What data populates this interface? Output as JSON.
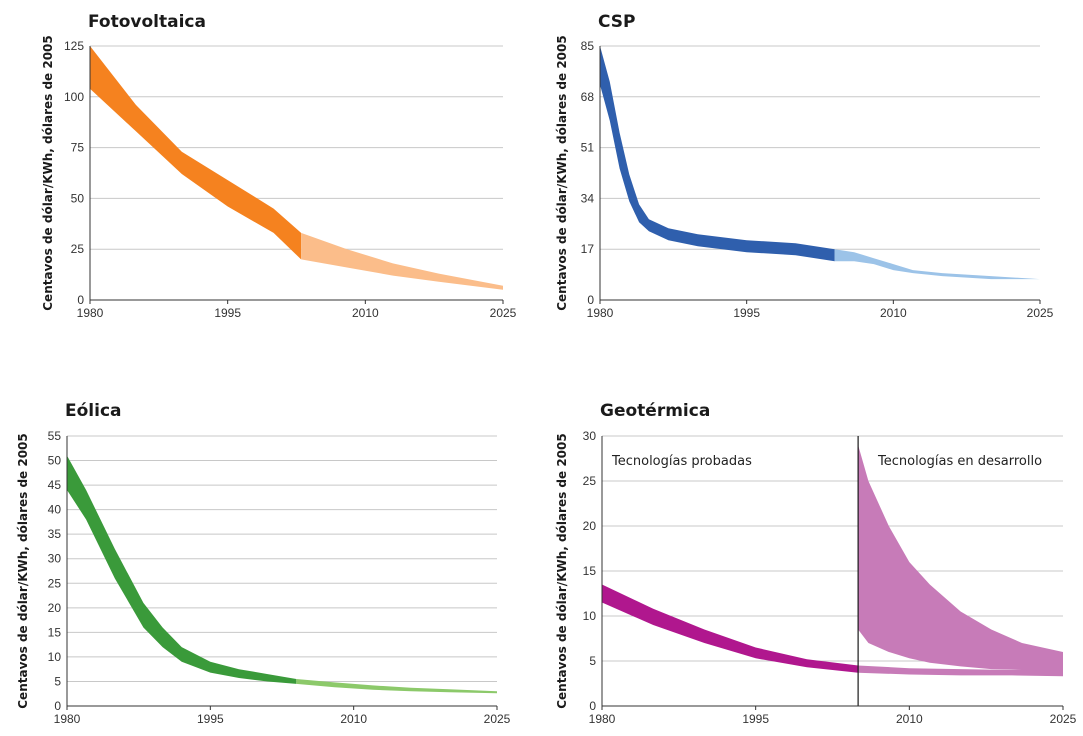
{
  "chart_data": [
    {
      "type": "area",
      "title": "Fotovoltaica",
      "ylabel": "Centavos de dólar/KWh, dólares de 2005",
      "xlabel": "",
      "xlim": [
        1980,
        2025
      ],
      "ylim": [
        0,
        125
      ],
      "xticks": [
        "1980",
        "1995",
        "2010",
        "2025"
      ],
      "yticks": [
        "0",
        "25",
        "50",
        "75",
        "100",
        "125"
      ],
      "grid": true,
      "colors": {
        "historical": "#f5821f",
        "projected": "#fbbd8a"
      },
      "split_year": 2003,
      "x": [
        1980,
        1985,
        1990,
        1995,
        2000,
        2003,
        2008,
        2013,
        2018,
        2025
      ],
      "upper": [
        125,
        96,
        73,
        59,
        45,
        33,
        25,
        18,
        13,
        7
      ],
      "lower": [
        104,
        83,
        62,
        46,
        33,
        20,
        16,
        12,
        9,
        5
      ],
      "annotations": []
    },
    {
      "type": "area",
      "title": "CSP",
      "ylabel": "Centavos de dólar/KWh, dólares de 2005",
      "xlabel": "",
      "xlim": [
        1980,
        2025
      ],
      "ylim": [
        0,
        85
      ],
      "xticks": [
        "1980",
        "1995",
        "2010",
        "2025"
      ],
      "yticks": [
        "0",
        "17",
        "34",
        "51",
        "68",
        "85"
      ],
      "grid": true,
      "colors": {
        "historical": "#2f5fad",
        "projected": "#9cc3e8"
      },
      "split_year": 2004,
      "x": [
        1980,
        1981,
        1982,
        1983,
        1984,
        1985,
        1987,
        1990,
        1995,
        2000,
        2004,
        2006,
        2008,
        2010,
        2012,
        2015,
        2020,
        2025
      ],
      "upper": [
        85,
        73,
        56,
        42,
        32,
        27,
        24,
        22,
        20,
        19,
        17,
        16,
        14,
        12,
        10,
        9,
        8,
        7
      ],
      "lower": [
        72,
        60,
        44,
        33,
        26,
        23,
        20,
        18,
        16,
        15,
        13,
        13,
        12,
        10,
        9,
        8,
        7,
        7
      ],
      "annotations": []
    },
    {
      "type": "area",
      "title": "Eólica",
      "ylabel": "Centavos de dólar/KWh, dólares de 2005",
      "xlabel": "",
      "xlim": [
        1980,
        2025
      ],
      "ylim": [
        0,
        55
      ],
      "xticks": [
        "1980",
        "1995",
        "2010",
        "2025"
      ],
      "yticks": [
        "0",
        "5",
        "10",
        "15",
        "20",
        "25",
        "30",
        "35",
        "40",
        "45",
        "50",
        "55"
      ],
      "grid": true,
      "colors": {
        "historical": "#3a9a3a",
        "projected": "#8cc96a"
      },
      "split_year": 2004,
      "x": [
        1980,
        1982,
        1985,
        1988,
        1990,
        1992,
        1995,
        1998,
        2001,
        2004,
        2008,
        2012,
        2016,
        2020,
        2025
      ],
      "upper": [
        51,
        44,
        32,
        21,
        16,
        12,
        9,
        7.5,
        6.5,
        5.5,
        4.8,
        4.2,
        3.7,
        3.4,
        3
      ],
      "lower": [
        44,
        38,
        26,
        16,
        12,
        9,
        6.8,
        5.7,
        5,
        4.5,
        3.8,
        3.3,
        3,
        2.8,
        2.6
      ],
      "annotations": []
    },
    {
      "type": "area",
      "title": "Geotérmica",
      "ylabel": "Centavos de dólar/KWh, dólares de 2005",
      "xlabel": "",
      "xlim": [
        1980,
        2025
      ],
      "ylim": [
        0,
        30
      ],
      "xticks": [
        "1980",
        "1995",
        "2010",
        "2025"
      ],
      "yticks": [
        "0",
        "5",
        "10",
        "15",
        "20",
        "25",
        "30"
      ],
      "grid": true,
      "colors": {
        "historical": "#b0178e",
        "projected": "#c77bb8"
      },
      "split_year": 2005,
      "x": [
        1980,
        1985,
        1990,
        1995,
        2000,
        2005,
        2010,
        2015,
        2020,
        2025
      ],
      "upper": [
        13.5,
        10.8,
        8.5,
        6.5,
        5.2,
        4.5,
        4.2,
        4.1,
        4.0,
        4.0
      ],
      "lower": [
        11.5,
        9.0,
        7.0,
        5.3,
        4.3,
        3.7,
        3.5,
        3.4,
        3.4,
        3.3
      ],
      "development_band": {
        "x": [
          2005,
          2006,
          2008,
          2010,
          2012,
          2015,
          2018,
          2021,
          2025
        ],
        "upper": [
          29,
          25,
          20,
          16,
          13.5,
          10.5,
          8.5,
          7,
          6
        ],
        "lower": [
          8.5,
          7.0,
          6.0,
          5.3,
          4.8,
          4.4,
          4.1,
          4.0,
          3.9
        ]
      },
      "divider_year": 2005,
      "annotations": [
        "Tecnologías probadas",
        "Tecnologías en desarrollo"
      ]
    }
  ]
}
